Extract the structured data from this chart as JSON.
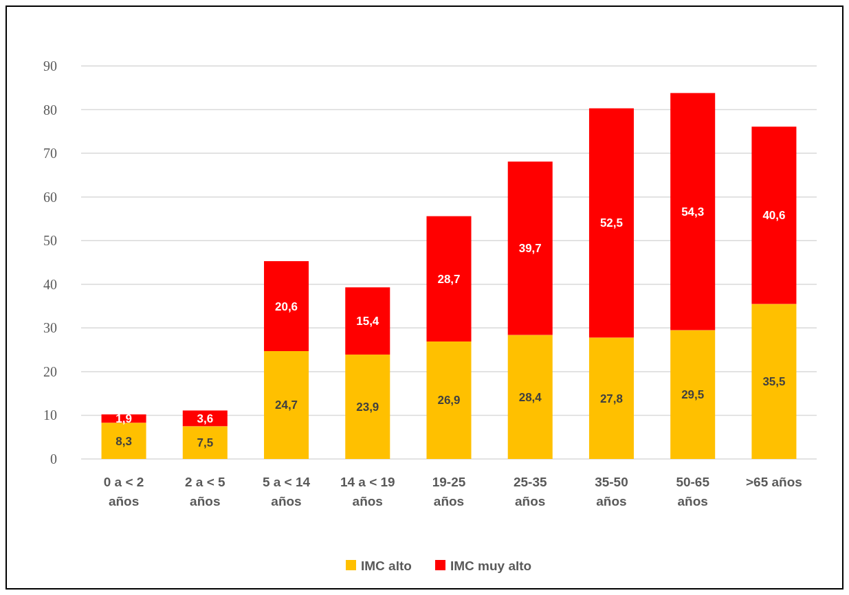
{
  "chart_data": {
    "type": "bar",
    "stacked": true,
    "categories": [
      "0 a < 2 años",
      "2 a < 5 años",
      "5 a < 14 años",
      "14 a < 19 años",
      "19-25 años",
      "25-35 años",
      "35-50 años",
      "50-65 años",
      ">65 años"
    ],
    "series": [
      {
        "name": "IMC alto",
        "color": "#ffc000",
        "values": [
          8.3,
          7.5,
          24.7,
          23.9,
          26.9,
          28.4,
          27.8,
          29.5,
          35.5
        ],
        "value_labels": [
          "8,3",
          "7,5",
          "24,7",
          "23,9",
          "26,9",
          "28,4",
          "27,8",
          "29,5",
          "35,5"
        ]
      },
      {
        "name": "IMC muy alto",
        "color": "#ff0000",
        "values": [
          1.9,
          3.6,
          20.6,
          15.4,
          28.7,
          39.7,
          52.5,
          54.3,
          40.6
        ],
        "value_labels": [
          "1,9",
          "3,6",
          "20,6",
          "15,4",
          "28,7",
          "39,7",
          "52,5",
          "54,3",
          "40,6"
        ]
      }
    ],
    "ylim": [
      0,
      90
    ],
    "yticks": [
      0,
      10,
      20,
      30,
      40,
      50,
      60,
      70,
      80,
      90
    ],
    "grid": "y",
    "legend": "bottom"
  }
}
